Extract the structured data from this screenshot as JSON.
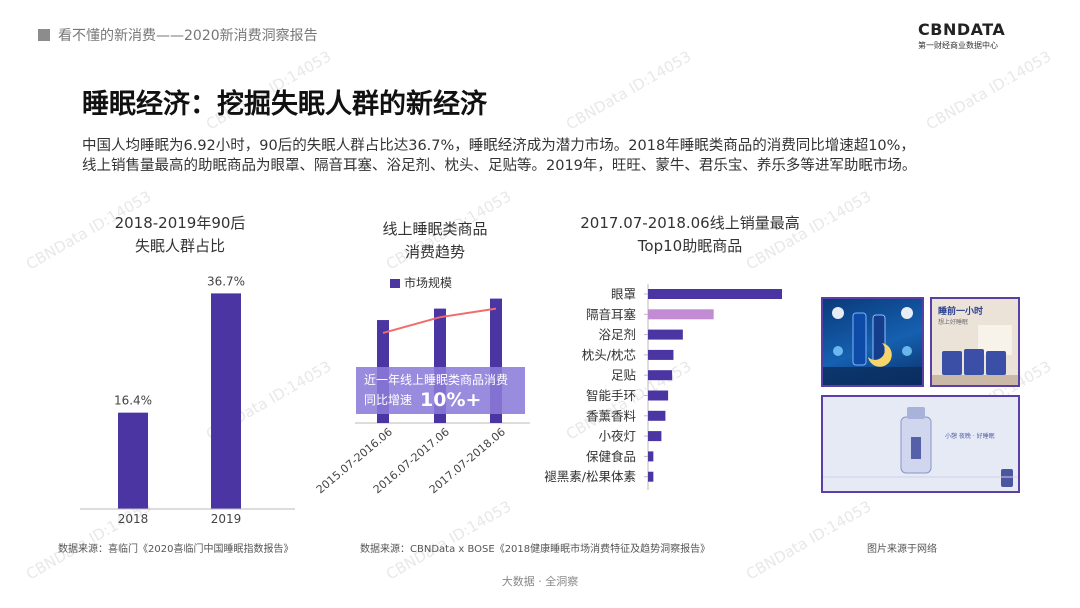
{
  "header": {
    "text": "看不懂的新消费——2020新消费洞察报告",
    "logo": "CBNDATA",
    "logo_sub": "第一财经商业数据中心"
  },
  "title": "睡眠经济：挖掘失眠人群的新经济",
  "intro": {
    "line1": "中国人均睡眠为6.92小时，90后的失眠人群占比达36.7%，睡眠经济成为潜力市场。2018年睡眠类商品的消费同比增速超10%，",
    "line2": "线上销售量最高的助眠商品为眼罩、隔音耳塞、浴足剂、枕头、足贴等。2019年，旺旺、蒙牛、君乐宝、养乐多等进军助眠市场。"
  },
  "watermark": "CBNData ID:14053",
  "chart_data": [
    {
      "type": "bar",
      "title_line1": "2018-2019年90后",
      "title_line2": "失眠人群占比",
      "categories": [
        "2018",
        "2019"
      ],
      "values": [
        16.4,
        36.7
      ],
      "value_labels": [
        "16.4%",
        "36.7%"
      ],
      "ylim": [
        0,
        40
      ],
      "color": "#4b35a3"
    },
    {
      "type": "bar",
      "title_line1": "线上睡眠类商品",
      "title_line2": "消费趋势",
      "legend": "市场规模",
      "categories": [
        "2015.07-2016.06",
        "2016.07-2017.06",
        "2017.07-2018.06"
      ],
      "values": [
        0.72,
        0.8,
        0.87
      ],
      "trend_line": [
        0.63,
        0.74,
        0.8
      ],
      "ylim": [
        0,
        1
      ],
      "color": "#4b35a3",
      "line_color": "#f26b6b",
      "callout_text": "近一年线上睡眠类商品消费",
      "callout_text2": "同比增速",
      "callout_value": "10%+"
    },
    {
      "type": "bar",
      "orientation": "horizontal",
      "title_line1": "2017.07-2018.06线上销量最高",
      "title_line2": "Top10助眠商品",
      "categories": [
        "眼罩",
        "隔音耳塞",
        "浴足剂",
        "枕头/枕芯",
        "足贴",
        "智能手环",
        "香薰香料",
        "小夜灯",
        "保健食品",
        "褪黑素/松果体素"
      ],
      "values": [
        100,
        49,
        26,
        19,
        18,
        15,
        13,
        10,
        4,
        4
      ],
      "colors": [
        "#4b35a3",
        "#c18cd4",
        "#4b35a3",
        "#4b35a3",
        "#4b35a3",
        "#4b35a3",
        "#4b35a3",
        "#4b35a3",
        "#4b35a3",
        "#4b35a3"
      ],
      "xlim": [
        0,
        100
      ]
    }
  ],
  "sources": {
    "left": "数据来源：喜临门《2020喜临门中国睡眠指数报告》",
    "middle": "数据来源：CBNData x BOSE《2018健康睡眠市场消费特征及趋势洞察报告》",
    "right": "图片来源于网络"
  },
  "ads": {
    "ad1_text": "",
    "ad2_line1": "睡前一小时",
    "ad2_line2": "想上好睡眠",
    "ad3_text": "小憩 夜晚 · 好睡眠"
  },
  "footer": "大数据 · 全洞察"
}
